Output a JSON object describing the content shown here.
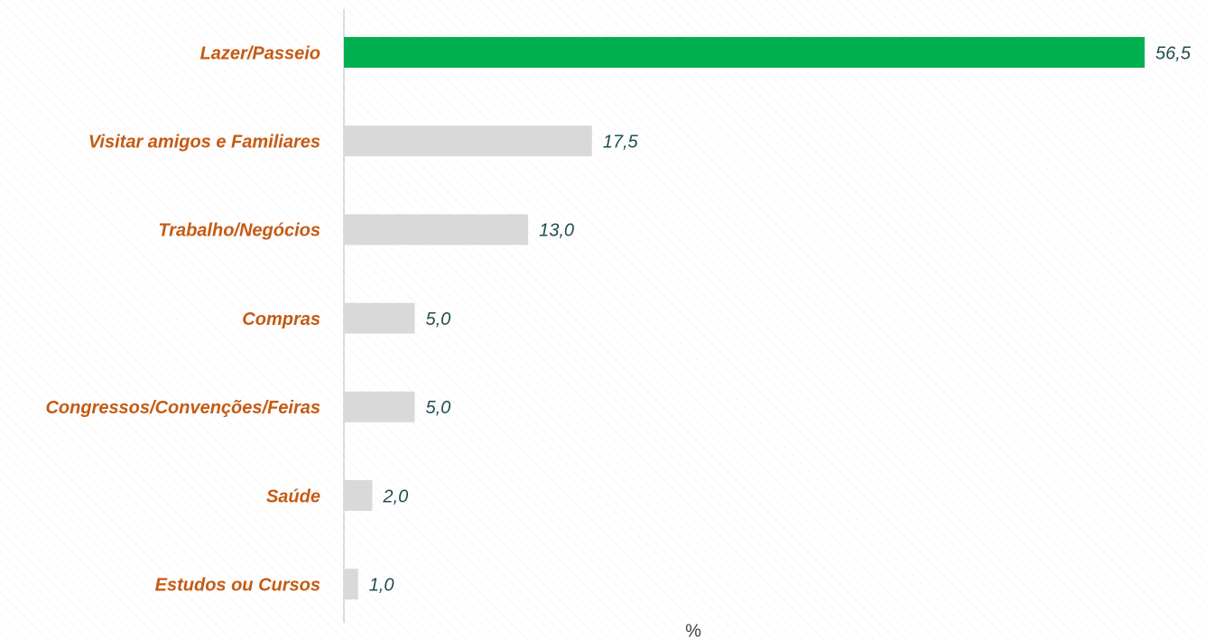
{
  "chart_data": {
    "type": "hbar",
    "categories": [
      "Lazer/Passeio",
      "Visitar amigos e Familiares",
      "Trabalho/Negócios",
      "Compras",
      "Congressos/Convenções/Feiras",
      "Saúde",
      "Estudos ou Cursos"
    ],
    "values": [
      56.5,
      17.5,
      13.0,
      5.0,
      5.0,
      2.0,
      1.0
    ],
    "value_labels": [
      "56,5",
      "17,5",
      "13,0",
      "5,0",
      "5,0",
      "2,0",
      "1,0"
    ],
    "colors": [
      "#00b050",
      "#d9d9d9",
      "#d9d9d9",
      "#d9d9d9",
      "#d9d9d9",
      "#d9d9d9",
      "#d9d9d9"
    ],
    "xlabel": "%",
    "xlim": [
      0,
      60
    ]
  }
}
